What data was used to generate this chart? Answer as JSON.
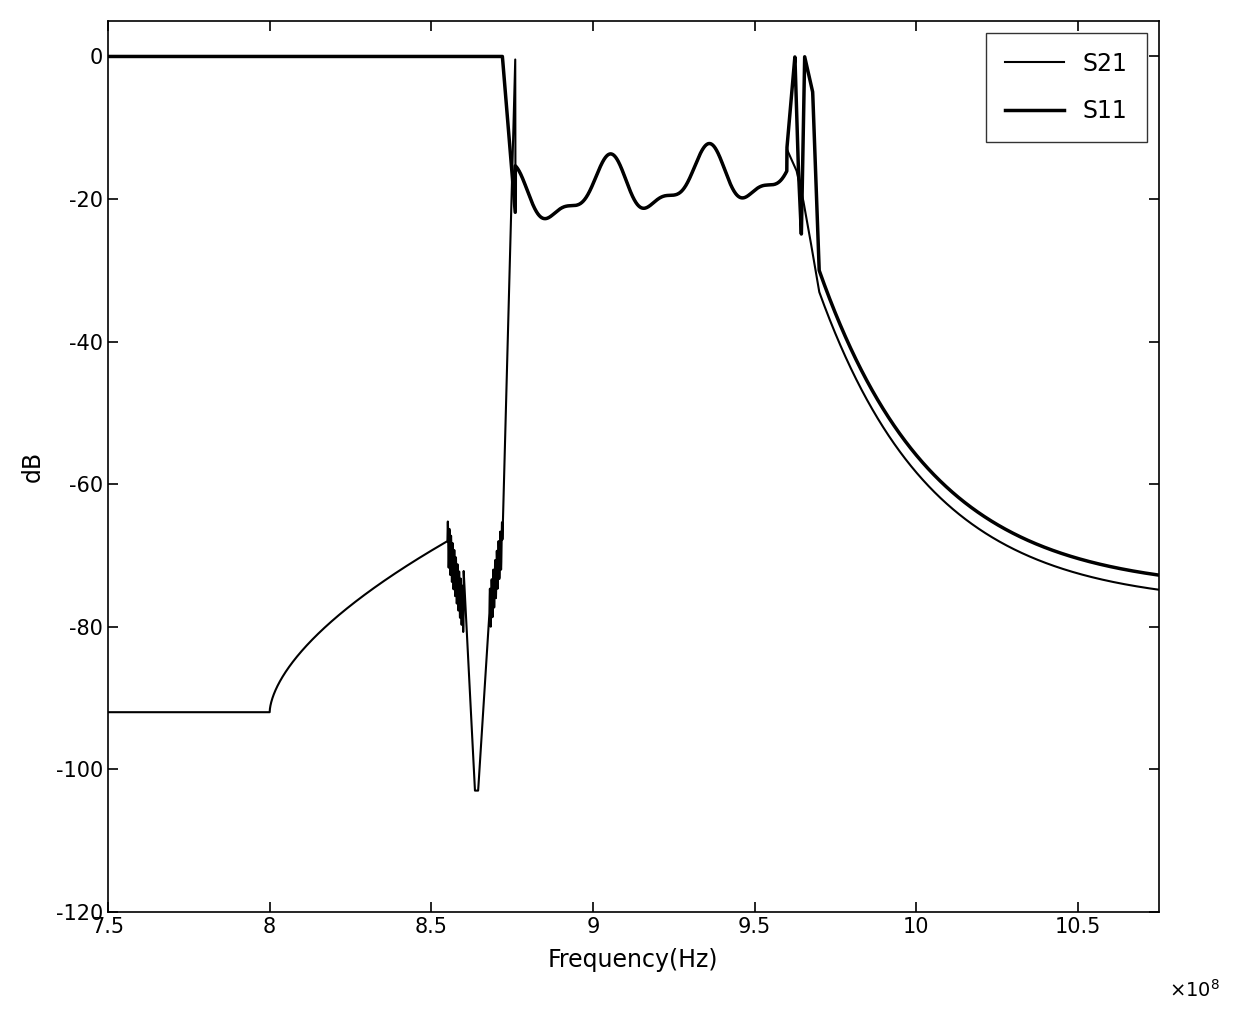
{
  "title": "",
  "xlabel": "Frequency(Hz)",
  "ylabel": "dB",
  "xlim": [
    750000000.0,
    1075000000.0
  ],
  "ylim": [
    -120,
    5
  ],
  "xticks": [
    750000000.0,
    800000000.0,
    850000000.0,
    900000000.0,
    950000000.0,
    1000000000.0,
    1050000000.0
  ],
  "yticks": [
    0,
    -20,
    -40,
    -60,
    -80,
    -100,
    -120
  ],
  "xtick_labels": [
    "7.5",
    "8",
    "8.5",
    "9",
    "9.5",
    "10",
    "10.5"
  ],
  "legend_labels": [
    "S21",
    "S11"
  ],
  "line_color": "#000000",
  "s21_linewidth": 1.5,
  "s11_linewidth": 2.5,
  "background_color": "#ffffff",
  "figsize": [
    12.4,
    10.13
  ],
  "dpi": 100
}
